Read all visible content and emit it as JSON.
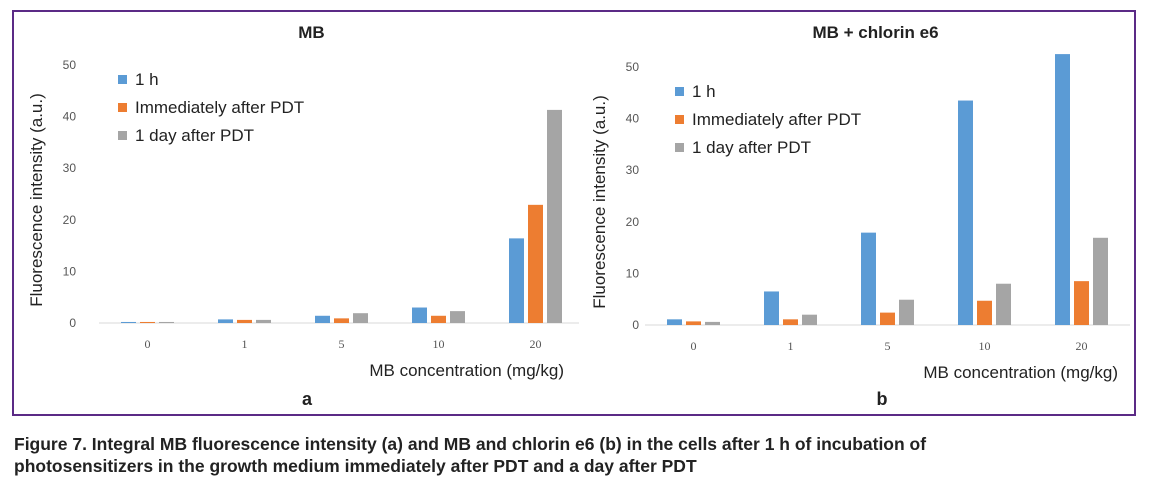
{
  "colors": {
    "frame": "#5b2a86",
    "series": [
      "#5b9bd5",
      "#ed7d31",
      "#a5a5a5"
    ]
  },
  "chart_data": [
    {
      "type": "bar",
      "title": "MB",
      "panel_label": "a",
      "xlabel": "MB concentration (mg/kg)",
      "ylabel": "Fluorescence intensity (a.u.)",
      "ylim": [
        0,
        50
      ],
      "yticks": [
        0,
        10,
        20,
        30,
        40,
        50
      ],
      "grid": false,
      "legend_position": "top-left",
      "categories": [
        "0",
        "1",
        "5",
        "10",
        "20"
      ],
      "series": [
        {
          "name": "1 h",
          "values": [
            0.2,
            0.7,
            1.4,
            3.0,
            16.4
          ]
        },
        {
          "name": "Immediately after PDT",
          "values": [
            0.2,
            0.6,
            0.9,
            1.4,
            22.9
          ]
        },
        {
          "name": "1 day after PDT",
          "values": [
            0.2,
            0.6,
            1.9,
            2.3,
            41.3
          ]
        }
      ]
    },
    {
      "type": "bar",
      "title": "MB + chlorin e6",
      "panel_label": "b",
      "xlabel": "MB concentration (mg/kg)",
      "ylabel": "Fluorescence intensity (a.u.)",
      "ylim": [
        0,
        50
      ],
      "yticks": [
        0,
        10,
        20,
        30,
        40,
        50
      ],
      "grid": false,
      "legend_position": "top-left",
      "categories": [
        "0",
        "1",
        "5",
        "10",
        "20"
      ],
      "series": [
        {
          "name": "1 h",
          "values": [
            1.1,
            6.5,
            17.9,
            43.5,
            52.5
          ]
        },
        {
          "name": "Immediately after PDT",
          "values": [
            0.7,
            1.1,
            2.4,
            4.7,
            8.5
          ]
        },
        {
          "name": "1 day after PDT",
          "values": [
            0.6,
            2.0,
            4.9,
            8.0,
            16.9
          ]
        }
      ]
    }
  ],
  "caption": {
    "line1": "Figure 7. Integral MB fluorescence intensity (a) and MB and chlorin e6 (b) in the cells after 1 h of incubation of",
    "line2": "photosensitizers in the growth medium immediately after PDT and a day after PDT"
  }
}
